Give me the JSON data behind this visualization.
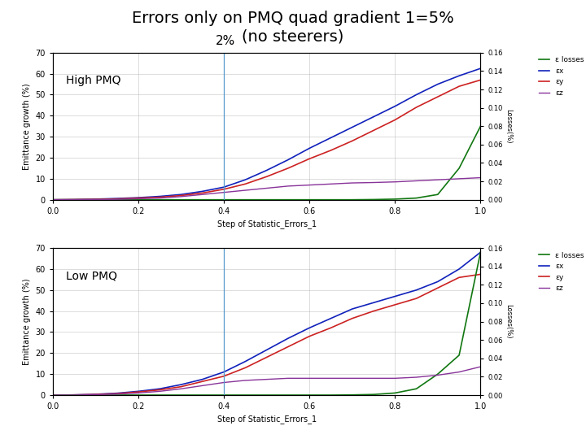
{
  "title_line1": "Errors only on PMQ quad gradient 1=5%",
  "title_line2": "(no steerers)",
  "title_fontsize": 14,
  "title_fontweight": "normal",
  "label_2pct": "2%",
  "label_high": "High PMQ",
  "label_low": "Low PMQ",
  "background_color": "#ffffff",
  "vline_x": 0.4,
  "vline_color": "#5599cc",
  "y_max": 70,
  "xlabel": "Step of Statistic_Errors_1",
  "ylabel": "Emittance growth (%)",
  "ylabel2": "Losses(%)",
  "colors": {
    "blue": "#1122bb",
    "red": "#cc2222",
    "green": "#117711",
    "purple": "#883399"
  },
  "legend_labels": [
    "ε losses",
    "εx",
    "εy",
    "εz"
  ],
  "x": [
    0.0,
    0.05,
    0.1,
    0.15,
    0.2,
    0.25,
    0.3,
    0.35,
    0.4,
    0.45,
    0.5,
    0.55,
    0.6,
    0.65,
    0.7,
    0.75,
    0.8,
    0.85,
    0.9,
    0.95,
    1.0
  ],
  "high_pmq": {
    "blue_y": [
      0.0,
      0.1,
      0.3,
      0.6,
      1.0,
      1.6,
      2.5,
      4.0,
      6.0,
      9.5,
      14.0,
      19.0,
      24.5,
      29.5,
      34.5,
      39.5,
      44.5,
      50.0,
      55.0,
      59.0,
      62.5
    ],
    "red_y": [
      0.0,
      0.1,
      0.2,
      0.4,
      0.8,
      1.2,
      2.0,
      3.2,
      5.0,
      7.5,
      11.0,
      15.0,
      19.5,
      23.5,
      28.0,
      33.0,
      38.0,
      44.0,
      49.0,
      54.0,
      57.0
    ],
    "green_y": [
      0.0,
      0.0,
      0.0,
      0.0,
      0.0,
      0.0,
      0.0,
      0.0,
      0.0,
      0.0,
      0.0,
      0.0,
      0.0,
      0.0,
      0.0,
      0.1,
      0.3,
      0.8,
      2.5,
      15.0,
      35.0
    ],
    "purple_y": [
      0.0,
      0.0,
      0.1,
      0.2,
      0.5,
      0.8,
      1.5,
      2.5,
      3.5,
      4.5,
      5.5,
      6.5,
      7.0,
      7.5,
      8.0,
      8.2,
      8.5,
      9.0,
      9.5,
      10.0,
      10.5
    ]
  },
  "low_pmq": {
    "blue_y": [
      0.0,
      0.1,
      0.4,
      0.9,
      1.8,
      3.0,
      5.0,
      7.5,
      11.0,
      16.0,
      21.5,
      27.0,
      32.0,
      36.5,
      41.0,
      44.0,
      47.0,
      50.0,
      54.0,
      60.0,
      68.0
    ],
    "red_y": [
      0.0,
      0.1,
      0.3,
      0.7,
      1.5,
      2.5,
      4.0,
      6.5,
      9.0,
      13.0,
      18.0,
      23.0,
      28.0,
      32.0,
      36.5,
      40.0,
      43.0,
      46.0,
      51.0,
      56.0,
      57.5
    ],
    "green_y": [
      0.0,
      0.0,
      0.0,
      0.0,
      0.0,
      0.0,
      0.0,
      0.0,
      0.0,
      0.0,
      0.0,
      0.0,
      0.0,
      0.0,
      0.1,
      0.3,
      1.0,
      3.0,
      10.0,
      19.0,
      68.0
    ],
    "purple_y": [
      0.0,
      0.0,
      0.2,
      0.5,
      1.0,
      1.8,
      3.0,
      4.5,
      6.0,
      7.0,
      7.5,
      8.0,
      8.0,
      8.0,
      8.0,
      8.0,
      8.0,
      8.5,
      9.5,
      11.0,
      13.5
    ]
  }
}
